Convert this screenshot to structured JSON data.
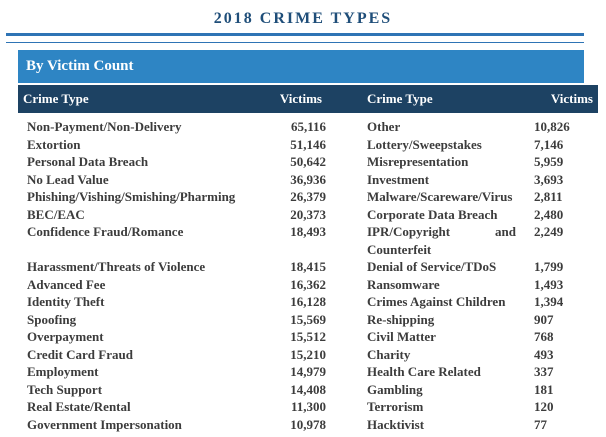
{
  "title": "2018 CRIME TYPES",
  "section_header": "By Victim Count",
  "colors": {
    "section_bar_blue": "#2E85C4",
    "header_navy": "#1D4263",
    "title_blue": "#1F4E79",
    "rule_blue": "#2E74B5",
    "body_text": "#3C3C3C",
    "header_text": "#FFFFFF"
  },
  "table": {
    "columns": [
      "Crime Type",
      "Victims",
      "Crime Type",
      "Victims"
    ],
    "rows": [
      {
        "left_crime_type": "Non-Payment/Non-Delivery",
        "left_victims": "65,116",
        "right_crime_type": "Other",
        "right_victims": "10,826"
      },
      {
        "left_crime_type": "Extortion",
        "left_victims": "51,146",
        "right_crime_type": "Lottery/Sweepstakes",
        "right_victims": "7,146"
      },
      {
        "left_crime_type": "Personal Data Breach",
        "left_victims": "50,642",
        "right_crime_type": "Misrepresentation",
        "right_victims": "5,959"
      },
      {
        "left_crime_type": "No Lead Value",
        "left_victims": "36,936",
        "right_crime_type": "Investment",
        "right_victims": "3,693"
      },
      {
        "left_crime_type": "Phishing/Vishing/Smishing/Pharming",
        "left_victims": "26,379",
        "right_crime_type": "Malware/Scareware/Virus",
        "right_victims": "2,811"
      },
      {
        "left_crime_type": "BEC/EAC",
        "left_victims": "20,373",
        "right_crime_type": "Corporate Data Breach",
        "right_victims": "2,480"
      },
      {
        "left_crime_type": "Confidence Fraud/Romance",
        "left_victims": "18,493",
        "right_crime_type": "IPR/Copyright and Counterfeit",
        "right_victims": "2,249"
      },
      {
        "left_crime_type": "Harassment/Threats of Violence",
        "left_victims": "18,415",
        "right_crime_type": "Denial of Service/TDoS",
        "right_victims": "1,799"
      },
      {
        "left_crime_type": "Advanced Fee",
        "left_victims": "16,362",
        "right_crime_type": "Ransomware",
        "right_victims": "1,493"
      },
      {
        "left_crime_type": "Identity Theft",
        "left_victims": "16,128",
        "right_crime_type": "Crimes Against Children",
        "right_victims": "1,394"
      },
      {
        "left_crime_type": "Spoofing",
        "left_victims": "15,569",
        "right_crime_type": "Re-shipping",
        "right_victims": "907"
      },
      {
        "left_crime_type": "Overpayment",
        "left_victims": "15,512",
        "right_crime_type": "Civil Matter",
        "right_victims": "768"
      },
      {
        "left_crime_type": "Credit Card Fraud",
        "left_victims": "15,210",
        "right_crime_type": "Charity",
        "right_victims": "493"
      },
      {
        "left_crime_type": "Employment",
        "left_victims": "14,979",
        "right_crime_type": "Health Care Related",
        "right_victims": "337"
      },
      {
        "left_crime_type": "Tech Support",
        "left_victims": "14,408",
        "right_crime_type": "Gambling",
        "right_victims": "181"
      },
      {
        "left_crime_type": "Real Estate/Rental",
        "left_victims": "11,300",
        "right_crime_type": "Terrorism",
        "right_victims": "120"
      },
      {
        "left_crime_type": "Government Impersonation",
        "left_victims": "10,978",
        "right_crime_type": "Hacktivist",
        "right_victims": "77"
      }
    ]
  }
}
